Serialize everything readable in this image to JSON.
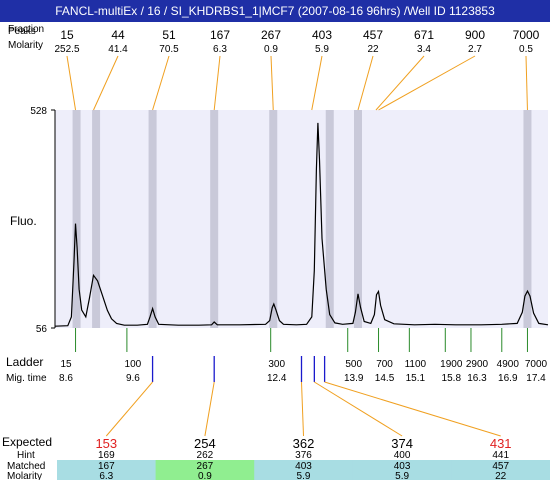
{
  "title": "FANCL-multiEx / 16 / SI_KHDRBS1_1|MCF7 (2007-08-16 96hrs) /Well ID 1123853",
  "labels": {
    "fraction": "Fraction",
    "peaks": "Peaks",
    "molarity": "Molarity",
    "fluo": "Fluo.",
    "ladder": "Ladder",
    "mig_time": "Mig. time",
    "expected": "Expected",
    "hint": "Hint",
    "matched": "Matched",
    "molarity_bottom": "Molarity"
  },
  "colors": {
    "title_bg": "#1f2fa6",
    "plot_bg": "#eeeefa",
    "band": "#c9c9d9",
    "trace": "#000000",
    "connector_top": "#f0a020",
    "ladder_tick": "#2a8a2a",
    "blue_tick": "#1a1acc",
    "expected_red": "#e02020",
    "matched_cyan": "#a8dde3",
    "matched_green": "#90ee90"
  },
  "chart_data": {
    "type": "line",
    "ylabel": "Fluo.",
    "ylim": [
      56,
      528
    ],
    "y_ticks": [
      "528",
      "56"
    ],
    "x_domain": [
      8.2,
      17.8
    ],
    "peaks": [
      {
        "size": "15",
        "molarity": "252.5",
        "time": 8.6
      },
      {
        "size": "44",
        "molarity": "41.4",
        "time": 8.95
      },
      {
        "size": "51",
        "molarity": "70.5",
        "time": 10.1
      },
      {
        "size": "167",
        "molarity": "6.3",
        "time": 11.3
      },
      {
        "size": "267",
        "molarity": "0.9",
        "time": 12.45
      },
      {
        "size": "403",
        "molarity": "5.9",
        "time": 13.2
      },
      {
        "size": "457",
        "molarity": "22",
        "time": 14.1
      },
      {
        "size": "671",
        "molarity": "3.4",
        "time": 14.45
      },
      {
        "size": "900",
        "molarity": "2.7",
        "time": 14.5
      },
      {
        "size": "7000",
        "molarity": "0.5",
        "time": 17.4
      }
    ],
    "bands": [
      8.62,
      9.0,
      10.1,
      11.3,
      12.45,
      13.55,
      14.1,
      17.4
    ],
    "trace": [
      [
        8.2,
        60
      ],
      [
        8.45,
        61
      ],
      [
        8.52,
        80
      ],
      [
        8.57,
        200
      ],
      [
        8.6,
        282
      ],
      [
        8.63,
        230
      ],
      [
        8.67,
        140
      ],
      [
        8.72,
        95
      ],
      [
        8.8,
        80
      ],
      [
        8.87,
        120
      ],
      [
        8.95,
        170
      ],
      [
        9.03,
        158
      ],
      [
        9.12,
        128
      ],
      [
        9.22,
        94
      ],
      [
        9.3,
        76
      ],
      [
        9.4,
        66
      ],
      [
        9.55,
        62
      ],
      [
        9.8,
        62
      ],
      [
        10.0,
        64
      ],
      [
        10.05,
        80
      ],
      [
        10.1,
        98
      ],
      [
        10.15,
        80
      ],
      [
        10.22,
        64
      ],
      [
        10.6,
        62
      ],
      [
        11.0,
        62
      ],
      [
        11.25,
        63
      ],
      [
        11.3,
        69
      ],
      [
        11.36,
        63
      ],
      [
        11.8,
        63
      ],
      [
        12.3,
        64
      ],
      [
        12.38,
        72
      ],
      [
        12.43,
        100
      ],
      [
        12.46,
        108
      ],
      [
        12.5,
        96
      ],
      [
        12.57,
        72
      ],
      [
        12.65,
        64
      ],
      [
        12.9,
        63
      ],
      [
        13.1,
        64
      ],
      [
        13.2,
        80
      ],
      [
        13.25,
        180
      ],
      [
        13.29,
        400
      ],
      [
        13.32,
        500
      ],
      [
        13.35,
        420
      ],
      [
        13.4,
        250
      ],
      [
        13.48,
        140
      ],
      [
        13.55,
        85
      ],
      [
        13.65,
        67
      ],
      [
        13.8,
        64
      ],
      [
        14.0,
        66
      ],
      [
        14.05,
        90
      ],
      [
        14.1,
        130
      ],
      [
        14.15,
        100
      ],
      [
        14.22,
        70
      ],
      [
        14.35,
        66
      ],
      [
        14.42,
        85
      ],
      [
        14.46,
        128
      ],
      [
        14.5,
        135
      ],
      [
        14.54,
        105
      ],
      [
        14.62,
        74
      ],
      [
        14.8,
        65
      ],
      [
        15.2,
        63
      ],
      [
        15.6,
        64
      ],
      [
        16.0,
        63
      ],
      [
        16.5,
        63
      ],
      [
        16.9,
        64
      ],
      [
        17.2,
        66
      ],
      [
        17.3,
        90
      ],
      [
        17.35,
        125
      ],
      [
        17.4,
        136
      ],
      [
        17.45,
        125
      ],
      [
        17.52,
        88
      ],
      [
        17.62,
        66
      ],
      [
        17.8,
        63
      ]
    ],
    "ladder": [
      {
        "size": "15",
        "time": 8.6,
        "time_label": "8.6"
      },
      {
        "size": "100",
        "time": 9.6,
        "time_label": "9.6"
      },
      {
        "size": "300",
        "time": 12.4,
        "time_label": "12.4"
      },
      {
        "size": "500",
        "time": 13.9,
        "time_label": "13.9"
      },
      {
        "size": "700",
        "time": 14.5,
        "time_label": "14.5"
      },
      {
        "size": "1100",
        "time": 15.1,
        "time_label": "15.1"
      },
      {
        "size": "1900",
        "time": 15.8,
        "time_label": "15.8"
      },
      {
        "size": "2900",
        "time": 16.3,
        "time_label": "16.3"
      },
      {
        "size": "4900",
        "time": 16.9,
        "time_label": "16.9"
      },
      {
        "size": "7000",
        "time": 17.4,
        "time_label": "17.4"
      }
    ],
    "blue_marks": [
      10.1,
      11.3,
      13.0,
      13.25,
      13.45
    ],
    "expected": [
      {
        "expected": "153",
        "hint": "169",
        "matched": "167",
        "molarity": "6.3",
        "red": true,
        "time": 10.1,
        "fill": "cyan"
      },
      {
        "expected": "254",
        "hint": "262",
        "matched": "267",
        "molarity": "0.9",
        "red": false,
        "time": 11.3,
        "fill": "green"
      },
      {
        "expected": "362",
        "hint": "376",
        "matched": "403",
        "molarity": "5.9",
        "red": false,
        "time": 13.0,
        "fill": "cyan"
      },
      {
        "expected": "374",
        "hint": "400",
        "matched": "403",
        "molarity": "5.9",
        "red": false,
        "time": 13.25,
        "fill": "cyan"
      },
      {
        "expected": "431",
        "hint": "441",
        "matched": "457",
        "molarity": "22",
        "red": true,
        "time": 13.45,
        "fill": "cyan"
      }
    ]
  }
}
